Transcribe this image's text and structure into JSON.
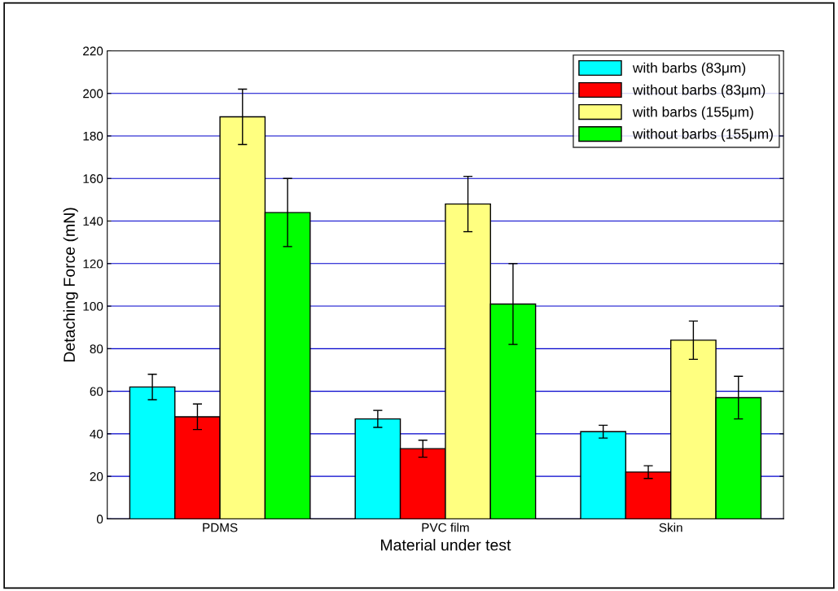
{
  "chart_data": {
    "type": "bar",
    "xlabel": "Material under test",
    "ylabel": "Detaching Force (mN)",
    "categories": [
      "PDMS",
      "PVC film",
      "Skin"
    ],
    "series": [
      {
        "name": "with barbs (83μm)",
        "color": "#00ffff",
        "values": [
          62,
          47,
          41
        ],
        "errors": [
          [
            56,
            68
          ],
          [
            43,
            51
          ],
          [
            38,
            44
          ]
        ]
      },
      {
        "name": "without barbs (83μm)",
        "color": "#ff0000",
        "values": [
          48,
          33,
          22
        ],
        "errors": [
          [
            42,
            54
          ],
          [
            29,
            37
          ],
          [
            19,
            25
          ]
        ]
      },
      {
        "name": "with barbs (155μm)",
        "color": "#ffff80",
        "values": [
          189,
          148,
          84
        ],
        "errors": [
          [
            176,
            202
          ],
          [
            135,
            161
          ],
          [
            75,
            93
          ]
        ]
      },
      {
        "name": "without barbs (155μm)",
        "color": "#00ff00",
        "values": [
          144,
          101,
          57
        ],
        "errors": [
          [
            128,
            160
          ],
          [
            82,
            120
          ],
          [
            47,
            67
          ]
        ]
      }
    ],
    "ylim": [
      0,
      220
    ],
    "yticks": [
      0,
      20,
      40,
      60,
      80,
      100,
      120,
      140,
      160,
      180,
      200,
      220
    ],
    "grid": "y",
    "legend": "top right"
  }
}
